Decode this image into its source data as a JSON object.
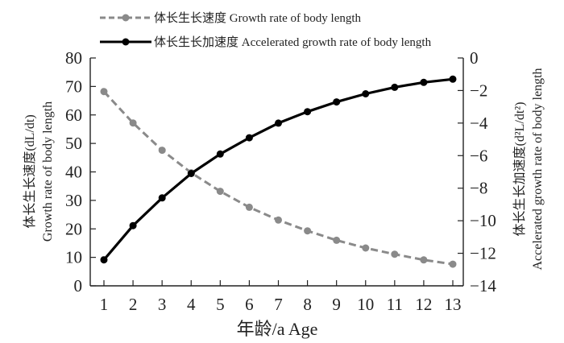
{
  "chart_data": {
    "type": "line",
    "x": [
      1,
      2,
      3,
      4,
      5,
      6,
      7,
      8,
      9,
      10,
      11,
      12,
      13
    ],
    "xlabel": "年龄/a Age",
    "ylabel_left": [
      "体长生长速度(dL/dt)",
      "Growth rate of body length"
    ],
    "ylabel_right": [
      "体长生长加速度(d²L/dt²)",
      "Accelerated growth rate of body length"
    ],
    "ylim_left": [
      0,
      80
    ],
    "ylim_right": [
      -14,
      0
    ],
    "yticks_left": [
      0,
      10,
      20,
      30,
      40,
      50,
      60,
      70,
      80
    ],
    "yticks_right": [
      -14,
      -12,
      -10,
      -8,
      -6,
      -4,
      -2,
      0
    ],
    "xticks": [
      1,
      2,
      3,
      4,
      5,
      6,
      7,
      8,
      9,
      10,
      11,
      12,
      13
    ],
    "legend_position": "top",
    "grid": false,
    "series": [
      {
        "name": "体长生长速度 Growth rate of body length",
        "axis": "left",
        "style": "dashed",
        "marker_color": "#8a8a8a",
        "line_color": "#8a8a8a",
        "values": [
          68.2,
          57.2,
          47.6,
          39.7,
          33.2,
          27.6,
          23.1,
          19.3,
          16.0,
          13.3,
          11.1,
          9.1,
          7.6
        ]
      },
      {
        "name": "体长生长加速度 Accelerated growth rate of body length",
        "axis": "right",
        "style": "solid",
        "marker_color": "#000000",
        "line_color": "#000000",
        "values": [
          -12.4,
          -10.3,
          -8.6,
          -7.1,
          -5.9,
          -4.9,
          -4.0,
          -3.3,
          -2.7,
          -2.2,
          -1.8,
          -1.5,
          -1.3
        ]
      }
    ]
  }
}
